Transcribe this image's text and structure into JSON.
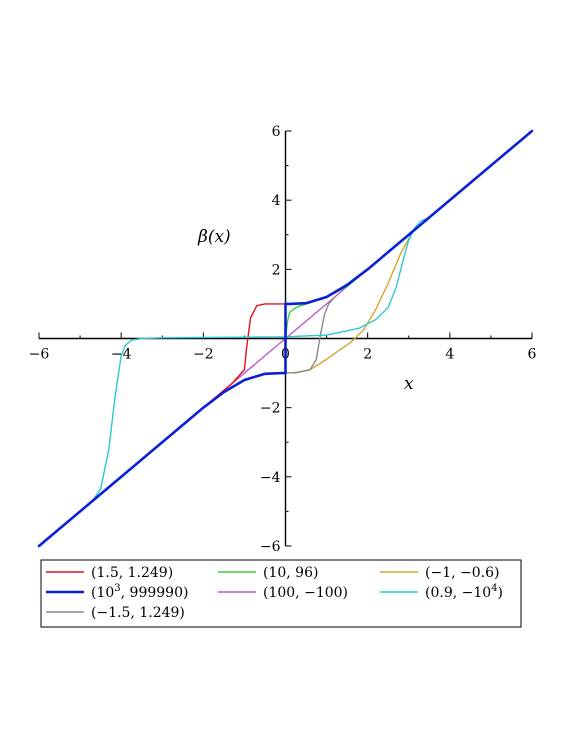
{
  "chart_data": {
    "type": "line",
    "title": "",
    "xlabel": "x",
    "ylabel": "β(x)",
    "xlim": [
      -6,
      6
    ],
    "ylim": [
      -6,
      6
    ],
    "xticks": [
      -6,
      -4,
      -2,
      0,
      2,
      4,
      6
    ],
    "yticks": [
      -6,
      -4,
      -2,
      2,
      4,
      6
    ],
    "xtick_labels": [
      "−6",
      "−4",
      "−2",
      "0",
      "2",
      "4",
      "6"
    ],
    "ytick_labels": [
      "−6",
      "−4",
      "−2",
      "2",
      "4",
      "6"
    ],
    "grid": false,
    "legend_position": "bottom",
    "series": [
      {
        "name": "(1.5, 1.249)",
        "legend_sup": "",
        "legend_tail": "",
        "color": "#e8101c",
        "x": [
          -6,
          -2,
          -1.3,
          -1.0,
          -0.95,
          -0.85,
          -0.7,
          -0.5,
          -0.3,
          -0.1,
          0.0
        ],
        "y": [
          -6,
          -2,
          -1.3,
          -0.9,
          -0.3,
          0.6,
          0.95,
          1.0,
          1.0,
          1.0,
          1.0
        ]
      },
      {
        "name": "(10, 96)",
        "legend_sup": "",
        "legend_tail": "",
        "color": "#3ad235",
        "x": [
          0.0,
          0.05,
          0.1,
          0.2,
          0.3,
          0.5,
          1.0,
          1.5,
          2.0
        ],
        "y": [
          0.0,
          0.5,
          0.75,
          0.85,
          0.92,
          1.0,
          1.2,
          1.5,
          2.0
        ]
      },
      {
        "name": "(−1, −0.6)",
        "legend_sup": "",
        "legend_tail": "",
        "color": "#d6a62e",
        "x": [
          0.2,
          0.6,
          1.0,
          1.3,
          1.6,
          1.9,
          2.2,
          2.5,
          2.8,
          3.1
        ],
        "y": [
          -1.0,
          -0.9,
          -0.6,
          -0.35,
          -0.1,
          0.25,
          0.85,
          1.6,
          2.45,
          3.1
        ]
      },
      {
        "name": "(10",
        "legend_sup": "3",
        "legend_tail": ", 999990)",
        "color": "#0a1fd6",
        "x": [
          -6,
          -3,
          -2,
          -1.5,
          -1.0,
          -0.5,
          -0.1,
          0.0,
          0.0,
          0.1,
          0.5,
          1.0,
          1.5,
          2.0,
          3,
          6
        ],
        "y": [
          -6,
          -3,
          -2,
          -1.55,
          -1.2,
          -1.02,
          -1.0,
          -1.0,
          1.0,
          1.0,
          1.02,
          1.2,
          1.55,
          2.0,
          3,
          6
        ]
      },
      {
        "name": "(100, −100)",
        "legend_sup": "",
        "legend_tail": "",
        "color": "#b657d1",
        "x": [
          -6,
          6
        ],
        "y": [
          -6,
          6
        ]
      },
      {
        "name": "(0.9, −10",
        "legend_sup": "4",
        "legend_tail": ")",
        "color": "#2ec7d0",
        "x": [
          -4.7,
          -4.5,
          -4.3,
          -4.15,
          -4.0,
          -3.9,
          -3.75,
          -3.5,
          -3.0,
          -2.0,
          0.0,
          1.0,
          1.8,
          2.2,
          2.5,
          2.7,
          2.85,
          3.0,
          3.15,
          3.3,
          3.5
        ],
        "y": [
          -4.7,
          -4.35,
          -3.2,
          -1.7,
          -0.5,
          -0.2,
          -0.05,
          0.0,
          0.02,
          0.03,
          0.05,
          0.1,
          0.3,
          0.55,
          0.9,
          1.5,
          2.2,
          2.85,
          3.2,
          3.4,
          3.5
        ]
      },
      {
        "name": "(−1.5, 1.249)",
        "legend_sup": "",
        "legend_tail": "",
        "color": "#8a8a8a",
        "x": [
          0.0,
          0.3,
          0.6,
          0.75,
          0.85,
          0.95,
          1.05,
          1.2
        ],
        "y": [
          -1.0,
          -0.98,
          -0.9,
          -0.6,
          0.1,
          0.7,
          1.0,
          1.2
        ]
      }
    ]
  }
}
